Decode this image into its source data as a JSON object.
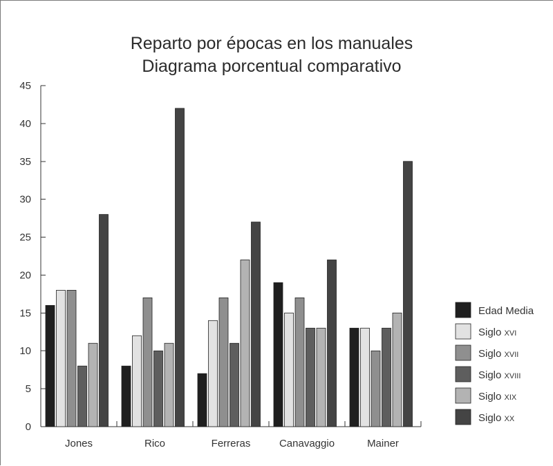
{
  "chart_data": {
    "type": "bar",
    "title": [
      "Reparto por épocas en los manuales",
      "Diagrama porcentual comparativo"
    ],
    "xlabel": "",
    "ylabel": "",
    "categories": [
      "Jones",
      "Rico",
      "Ferreras",
      "Canavaggio",
      "Mainer"
    ],
    "ylim": [
      0,
      45
    ],
    "yticks": [
      0,
      5,
      10,
      15,
      20,
      25,
      30,
      35,
      40,
      45
    ],
    "grid": false,
    "legend_position": "right",
    "series": [
      {
        "name": "Edad Media",
        "label_parts": [
          "Edad Media",
          ""
        ],
        "color": "#1f1f1f",
        "values": [
          16,
          8,
          7,
          19,
          13
        ]
      },
      {
        "name": "Siglo XVI",
        "label_parts": [
          "Siglo ",
          "XVI"
        ],
        "color": "#e2e2e2",
        "values": [
          18,
          12,
          14,
          15,
          13
        ]
      },
      {
        "name": "Siglo XVII",
        "label_parts": [
          "Siglo ",
          "XVII"
        ],
        "color": "#8f8f8f",
        "values": [
          18,
          17,
          17,
          17,
          10
        ]
      },
      {
        "name": "Siglo XVIII",
        "label_parts": [
          "Siglo ",
          "XVIII"
        ],
        "color": "#5e5e5e",
        "values": [
          8,
          10,
          11,
          13,
          13
        ]
      },
      {
        "name": "Siglo XIX",
        "label_parts": [
          "Siglo ",
          "XIX"
        ],
        "color": "#b3b3b3",
        "values": [
          11,
          11,
          22,
          13,
          15
        ]
      },
      {
        "name": "Siglo XX",
        "label_parts": [
          "Siglo ",
          "XX"
        ],
        "color": "#444444",
        "values": [
          28,
          42,
          27,
          22,
          35
        ]
      }
    ]
  }
}
